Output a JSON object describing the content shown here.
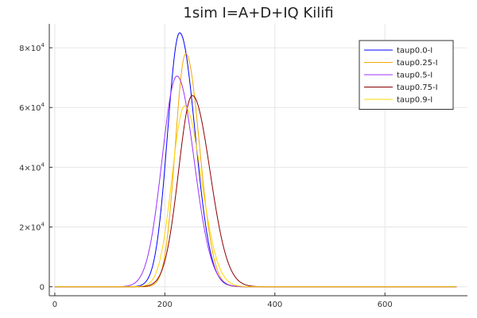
{
  "chart_data": {
    "type": "line",
    "title": "1sim I=A+D+IQ Kilifi",
    "xlabel": "",
    "ylabel": "",
    "xlim": [
      -10,
      750
    ],
    "ylim": [
      -3000,
      88000
    ],
    "xticks": [
      0,
      200,
      400,
      600
    ],
    "xtick_labels": [
      "0",
      "200",
      "400",
      "600"
    ],
    "yticks": [
      0,
      20000,
      40000,
      60000,
      80000
    ],
    "ytick_labels": [
      {
        "base": "0",
        "exp": ""
      },
      {
        "base": "2×10",
        "exp": "4"
      },
      {
        "base": "4×10",
        "exp": "4"
      },
      {
        "base": "6×10",
        "exp": "4"
      },
      {
        "base": "8×10",
        "exp": "4"
      }
    ],
    "grid": true,
    "legend_position": "top-right",
    "x_start": 0,
    "x_end": 730,
    "series": [
      {
        "name": "taup0.0-I",
        "color": "#0000ff",
        "peak_x": 227,
        "peak_y": 85000,
        "sigma_left": 22,
        "sigma_right": 28
      },
      {
        "name": "taup0.25-I",
        "color": "#f5a800",
        "peak_x": 238,
        "peak_y": 78000,
        "sigma_left": 19,
        "sigma_right": 25
      },
      {
        "name": "taup0.5-I",
        "color": "#9b30ff",
        "peak_x": 222,
        "peak_y": 70500,
        "sigma_left": 27,
        "sigma_right": 31
      },
      {
        "name": "taup0.75-I",
        "color": "#8b0000",
        "peak_x": 250,
        "peak_y": 64000,
        "sigma_left": 25,
        "sigma_right": 32
      },
      {
        "name": "taup0.9-I",
        "color": "#ffd700",
        "peak_x": 236,
        "peak_y": 60500,
        "sigma_left": 23,
        "sigma_right": 30
      }
    ]
  }
}
